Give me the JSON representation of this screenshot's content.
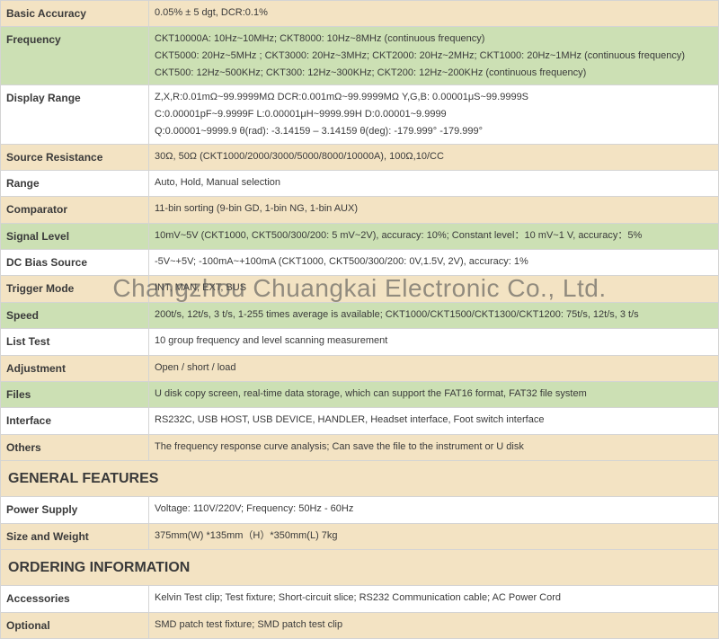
{
  "watermark": "Changzhou Chuangkai Electronic Co., Ltd.",
  "rows": [
    {
      "label": "Basic Accuracy",
      "value": "0.05% ± 5 dgt, DCR:0.1%",
      "cls": "row-beige"
    },
    {
      "label": "Frequency",
      "value": "CKT10000A: 10Hz~10MHz; CKT8000: 10Hz~8MHz (continuous frequency)\nCKT5000: 20Hz~5MHz ; CKT3000: 20Hz~3MHz; CKT2000: 20Hz~2MHz;  CKT1000: 20Hz~1MHz (continuous frequency)\nCKT500: 12Hz~500KHz; CKT300: 12Hz~300KHz; CKT200: 12Hz~200KHz (continuous frequency)",
      "cls": "row-green"
    },
    {
      "label": "Display Range",
      "value": "Z,X,R:0.01mΩ~99.9999MΩ    DCR:0.001mΩ~99.9999MΩ      Y,G,B: 0.00001μS~99.9999S\nC:0.00001pF~9.9999F             L:0.00001μH~9999.99H              D:0.00001~9.9999\nQ:0.00001~9999.9                    θ(rad): -3.14159  –  3.14159           θ(deg): -179.999° -179.999°",
      "cls": "row-white"
    },
    {
      "label": "Source Resistance",
      "value": "30Ω, 50Ω (CKT1000/2000/3000/5000/8000/10000A), 100Ω,10/CC",
      "cls": "row-beige"
    },
    {
      "label": "Range",
      "value": "Auto, Hold, Manual selection",
      "cls": "row-white"
    },
    {
      "label": "Comparator",
      "value": "11-bin sorting (9-bin GD, 1-bin NG, 1-bin AUX)",
      "cls": "row-beige"
    },
    {
      "label": "Signal Level",
      "value": "10mV~5V (CKT1000, CKT500/300/200: 5 mV~2V), accuracy: 10%; Constant level：10 mV~1 V, accuracy：5%",
      "cls": "row-green"
    },
    {
      "label": "DC Bias Source",
      "value": "-5V~+5V; -100mA~+100mA (CKT1000, CKT500/300/200: 0V,1.5V, 2V), accuracy: 1%",
      "cls": "row-white"
    },
    {
      "label": "Trigger Mode",
      "value": "INT, MAN, EXT, BUS",
      "cls": "row-beige"
    },
    {
      "label": "Speed",
      "value": "200t/s, 12t/s, 3 t/s, 1-255 times average is available; CKT1000/CKT1500/CKT1300/CKT1200: 75t/s, 12t/s, 3 t/s",
      "cls": "row-green"
    },
    {
      "label": "List Test",
      "value": "10 group frequency and level scanning measurement",
      "cls": "row-white"
    },
    {
      "label": "Adjustment",
      "value": "Open / short / load",
      "cls": "row-beige"
    },
    {
      "label": "Files",
      "value": "U disk copy screen, real-time data storage, which can support the FAT16 format, FAT32 file system",
      "cls": "row-green"
    },
    {
      "label": "Interface",
      "value": "RS232C, USB HOST, USB DEVICE, HANDLER, Headset interface, Foot switch interface",
      "cls": "row-white"
    },
    {
      "label": "Others",
      "value": "The frequency response curve analysis; Can save the file to the instrument or U disk",
      "cls": "row-beige"
    }
  ],
  "sections": {
    "general": {
      "title": "GENERAL FEATURES",
      "rows": [
        {
          "label": "Power Supply",
          "value": "Voltage: 110V/220V; Frequency: 50Hz - 60Hz",
          "cls": "row-white"
        },
        {
          "label": "Size and Weight",
          "value": "375mm(W)  *135mm（H）*350mm(L)    7kg",
          "cls": "row-beige"
        }
      ]
    },
    "ordering": {
      "title": "ORDERING INFORMATION",
      "rows": [
        {
          "label": "Accessories",
          "value": "Kelvin Test clip; Test fixture; Short-circuit slice; RS232 Communication cable; AC Power Cord",
          "cls": "row-white"
        },
        {
          "label": "Optional",
          "value": "SMD patch test fixture; SMD patch test clip",
          "cls": "row-beige"
        }
      ]
    }
  },
  "colors": {
    "beige": "#f3e3c3",
    "green": "#cce0b4",
    "white": "#ffffff",
    "border": "#d4d4d4",
    "text": "#3a3a3a"
  }
}
